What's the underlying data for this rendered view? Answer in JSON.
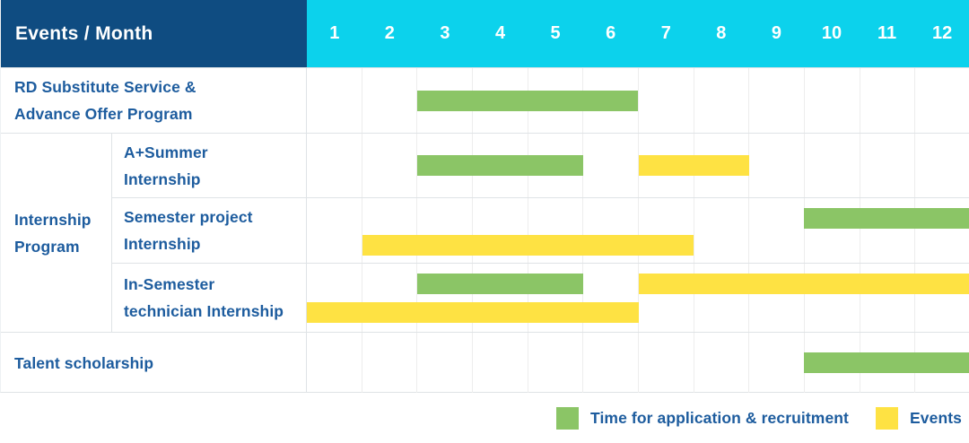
{
  "header": {
    "label": "Events / Month",
    "months": [
      "1",
      "2",
      "3",
      "4",
      "5",
      "6",
      "7",
      "8",
      "9",
      "10",
      "11",
      "12"
    ]
  },
  "group": {
    "label": "Internship\nProgram"
  },
  "rows": [
    {
      "label": "RD Substitute Service &\nAdvance Offer Program",
      "bars": [
        {
          "color": "green",
          "start": 3,
          "end": 6,
          "lane": "single"
        }
      ]
    },
    {
      "label": "A+Summer\nInternship",
      "bars": [
        {
          "color": "green",
          "start": 3,
          "end": 5,
          "lane": "single"
        },
        {
          "color": "yellow",
          "start": 7,
          "end": 8,
          "lane": "single"
        }
      ]
    },
    {
      "label": "Semester project\nInternship",
      "bars": [
        {
          "color": "green",
          "start": 10,
          "end": 12,
          "lane": "top"
        },
        {
          "color": "yellow",
          "start": 2,
          "end": 7,
          "lane": "bottom"
        }
      ]
    },
    {
      "label": "In-Semester\ntechnician Internship",
      "bars": [
        {
          "color": "green",
          "start": 3,
          "end": 5,
          "lane": "top"
        },
        {
          "color": "yellow",
          "start": 7,
          "end": 12,
          "lane": "top"
        },
        {
          "color": "yellow",
          "start": 1,
          "end": 6,
          "lane": "bottom"
        }
      ]
    },
    {
      "label": "Talent scholarship",
      "bars": [
        {
          "color": "green",
          "start": 10,
          "end": 12,
          "lane": "single"
        }
      ]
    }
  ],
  "legend": {
    "items": [
      {
        "label": "Time for application & recruitment",
        "color": "green"
      },
      {
        "label": "Events",
        "color": "yellow"
      }
    ]
  },
  "colors": {
    "header_bg": "#0f4c81",
    "month_header_bg": "#0cd2ec",
    "green": "#8bc566",
    "yellow": "#fee243",
    "label_text": "#1d5c9e"
  },
  "chart_data": {
    "type": "bar",
    "subtype": "gantt-schedule",
    "title": "Events / Month",
    "xlabel": "Month",
    "x_ticks": [
      1,
      2,
      3,
      4,
      5,
      6,
      7,
      8,
      9,
      10,
      11,
      12
    ],
    "x_range": [
      1,
      12
    ],
    "legend_position": "bottom-right",
    "grid": true,
    "series_meaning": {
      "green": "Time for application & recruitment",
      "yellow": "Events"
    },
    "tasks": [
      {
        "name": "RD Substitute Service & Advance Offer Program",
        "group": null,
        "bars": [
          {
            "kind": "Time for application & recruitment",
            "start_month": 3,
            "end_month": 6
          }
        ]
      },
      {
        "name": "A+Summer Internship",
        "group": "Internship Program",
        "bars": [
          {
            "kind": "Time for application & recruitment",
            "start_month": 3,
            "end_month": 5
          },
          {
            "kind": "Events",
            "start_month": 7,
            "end_month": 8
          }
        ]
      },
      {
        "name": "Semester project Internship",
        "group": "Internship Program",
        "bars": [
          {
            "kind": "Time for application & recruitment",
            "start_month": 10,
            "end_month": 12
          },
          {
            "kind": "Events",
            "start_month": 2,
            "end_month": 7
          }
        ]
      },
      {
        "name": "In-Semester technician Internship",
        "group": "Internship Program",
        "bars": [
          {
            "kind": "Time for application & recruitment",
            "start_month": 3,
            "end_month": 5
          },
          {
            "kind": "Events",
            "start_month": 7,
            "end_month": 12
          },
          {
            "kind": "Events",
            "start_month": 1,
            "end_month": 6
          }
        ]
      },
      {
        "name": "Talent scholarship",
        "group": null,
        "bars": [
          {
            "kind": "Time for application & recruitment",
            "start_month": 10,
            "end_month": 12
          }
        ]
      }
    ]
  }
}
